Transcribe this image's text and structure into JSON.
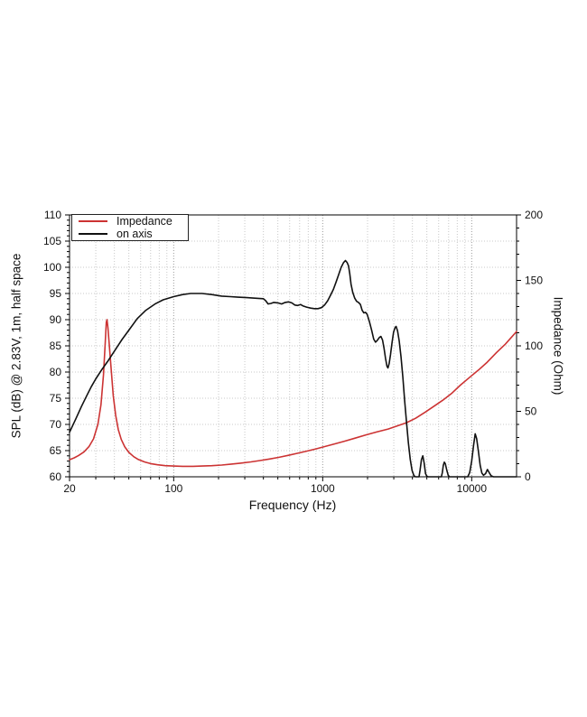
{
  "chart_data": {
    "type": "line",
    "xlabel": "Frequency (Hz)",
    "ylabel_left": "SPL (dB) @ 2.83V, 1m, half space",
    "ylabel_right": "Impedance (Ohm)",
    "x_scale": "log",
    "x_range": [
      20,
      20000
    ],
    "x_ticks_labeled": [
      20,
      100,
      1000,
      10000
    ],
    "x_ticks_minor": [
      30,
      40,
      50,
      60,
      70,
      80,
      90,
      200,
      300,
      400,
      500,
      600,
      700,
      800,
      900,
      2000,
      3000,
      4000,
      5000,
      6000,
      7000,
      8000,
      9000
    ],
    "y_left_range": [
      60,
      110
    ],
    "y_left_ticks": [
      60,
      65,
      70,
      75,
      80,
      85,
      90,
      95,
      100,
      105,
      110
    ],
    "y_left_minor_step": 1,
    "y_right_range": [
      0,
      200
    ],
    "y_right_ticks": [
      0,
      50,
      100,
      150,
      200
    ],
    "y_right_minor_step": 10,
    "grid": true,
    "legend_position": "top-left",
    "series": [
      {
        "name": "Impedance",
        "axis": "right",
        "color": "#cc3333",
        "points": [
          [
            20,
            13
          ],
          [
            21.5,
            14.5
          ],
          [
            23,
            16.3
          ],
          [
            25,
            19
          ],
          [
            27,
            23
          ],
          [
            29,
            29
          ],
          [
            31,
            40
          ],
          [
            32.5,
            55
          ],
          [
            33.8,
            78
          ],
          [
            34.7,
            102
          ],
          [
            35.3,
            118
          ],
          [
            35.7,
            120
          ],
          [
            36.2,
            114
          ],
          [
            37,
            100
          ],
          [
            38,
            83
          ],
          [
            39.3,
            62
          ],
          [
            40.8,
            47
          ],
          [
            42.5,
            36
          ],
          [
            44.5,
            28.5
          ],
          [
            47,
            22.8
          ],
          [
            50,
            18.6
          ],
          [
            54,
            15.3
          ],
          [
            58,
            13.2
          ],
          [
            64,
            11.3
          ],
          [
            70,
            10.1
          ],
          [
            78,
            9.2
          ],
          [
            88,
            8.5
          ],
          [
            100,
            8.2
          ],
          [
            115,
            8
          ],
          [
            135,
            8
          ],
          [
            155,
            8.2
          ],
          [
            180,
            8.5
          ],
          [
            210,
            9
          ],
          [
            240,
            9.6
          ],
          [
            280,
            10.4
          ],
          [
            330,
            11.4
          ],
          [
            380,
            12.4
          ],
          [
            440,
            13.6
          ],
          [
            510,
            14.9
          ],
          [
            590,
            16.4
          ],
          [
            680,
            18
          ],
          [
            780,
            19.6
          ],
          [
            900,
            21.3
          ],
          [
            1040,
            23.2
          ],
          [
            1200,
            25.1
          ],
          [
            1400,
            27.2
          ],
          [
            1650,
            29.5
          ],
          [
            1950,
            32
          ],
          [
            2300,
            34.2
          ],
          [
            2750,
            36.5
          ],
          [
            3200,
            39
          ],
          [
            3650,
            41.3
          ],
          [
            4200,
            44.7
          ],
          [
            4900,
            49.5
          ],
          [
            5600,
            54
          ],
          [
            6400,
            58.5
          ],
          [
            7300,
            63.5
          ],
          [
            8400,
            70
          ],
          [
            9700,
            76
          ],
          [
            11100,
            81.5
          ],
          [
            12700,
            87.5
          ],
          [
            14700,
            95
          ],
          [
            16700,
            101
          ],
          [
            18300,
            106
          ],
          [
            20000,
            111
          ]
        ]
      },
      {
        "name": "on axis",
        "axis": "left",
        "color": "#111111",
        "points": [
          [
            20,
            68.5
          ],
          [
            22,
            71
          ],
          [
            24,
            73.4
          ],
          [
            26,
            75.4
          ],
          [
            28,
            77.2
          ],
          [
            30,
            78.7
          ],
          [
            33,
            80.5
          ],
          [
            36,
            82
          ],
          [
            40,
            84
          ],
          [
            45,
            86.2
          ],
          [
            50,
            88
          ],
          [
            57,
            90.2
          ],
          [
            65,
            91.8
          ],
          [
            75,
            93
          ],
          [
            85,
            93.8
          ],
          [
            100,
            94.4
          ],
          [
            115,
            94.8
          ],
          [
            130,
            95
          ],
          [
            155,
            95
          ],
          [
            180,
            94.8
          ],
          [
            210,
            94.5
          ],
          [
            240,
            94.4
          ],
          [
            270,
            94.3
          ],
          [
            310,
            94.2
          ],
          [
            350,
            94.1
          ],
          [
            400,
            94
          ],
          [
            415,
            93.6
          ],
          [
            430,
            93
          ],
          [
            450,
            93.1
          ],
          [
            470,
            93.3
          ],
          [
            500,
            93.2
          ],
          [
            530,
            93
          ],
          [
            560,
            93.3
          ],
          [
            590,
            93.4
          ],
          [
            620,
            93.2
          ],
          [
            650,
            92.8
          ],
          [
            680,
            92.7
          ],
          [
            710,
            92.9
          ],
          [
            740,
            92.6
          ],
          [
            780,
            92.4
          ],
          [
            830,
            92.2
          ],
          [
            880,
            92.1
          ],
          [
            930,
            92.1
          ],
          [
            980,
            92.3
          ],
          [
            1030,
            92.8
          ],
          [
            1080,
            93.6
          ],
          [
            1130,
            94.7
          ],
          [
            1180,
            95.8
          ],
          [
            1230,
            97.2
          ],
          [
            1280,
            98.6
          ],
          [
            1330,
            100
          ],
          [
            1380,
            100.9
          ],
          [
            1420,
            101.3
          ],
          [
            1460,
            100.9
          ],
          [
            1490,
            100.3
          ],
          [
            1520,
            98.8
          ],
          [
            1550,
            96.8
          ],
          [
            1590,
            95.2
          ],
          [
            1640,
            94.1
          ],
          [
            1690,
            93.5
          ],
          [
            1740,
            93.3
          ],
          [
            1790,
            92.9
          ],
          [
            1840,
            91.8
          ],
          [
            1890,
            91.3
          ],
          [
            1940,
            91.4
          ],
          [
            1990,
            91
          ],
          [
            2060,
            89.6
          ],
          [
            2130,
            88
          ],
          [
            2200,
            86.3
          ],
          [
            2260,
            85.7
          ],
          [
            2320,
            86
          ],
          [
            2400,
            86.6
          ],
          [
            2460,
            86.8
          ],
          [
            2520,
            86.1
          ],
          [
            2580,
            84.6
          ],
          [
            2640,
            82.6
          ],
          [
            2700,
            81.1
          ],
          [
            2740,
            80.8
          ],
          [
            2790,
            81.6
          ],
          [
            2850,
            83.3
          ],
          [
            2920,
            85.6
          ],
          [
            2990,
            87.6
          ],
          [
            3060,
            88.5
          ],
          [
            3110,
            88.7
          ],
          [
            3180,
            87.9
          ],
          [
            3260,
            86
          ],
          [
            3350,
            83
          ],
          [
            3450,
            79
          ],
          [
            3550,
            74.5
          ],
          [
            3650,
            70.5
          ],
          [
            3760,
            66.5
          ],
          [
            3870,
            63.3
          ],
          [
            3980,
            61.2
          ],
          [
            4100,
            60.2
          ],
          [
            4200,
            60
          ],
          [
            4430,
            60
          ],
          [
            4500,
            61.2
          ],
          [
            4600,
            63.3
          ],
          [
            4700,
            64
          ],
          [
            4800,
            62.6
          ],
          [
            4900,
            60.6
          ],
          [
            5000,
            60.1
          ],
          [
            5100,
            60
          ],
          [
            6250,
            60
          ],
          [
            6350,
            60.8
          ],
          [
            6450,
            62.2
          ],
          [
            6550,
            62.8
          ],
          [
            6650,
            62.5
          ],
          [
            6800,
            61.3
          ],
          [
            6950,
            60.3
          ],
          [
            7100,
            60
          ],
          [
            9400,
            60
          ],
          [
            9700,
            60.8
          ],
          [
            10000,
            63
          ],
          [
            10300,
            66
          ],
          [
            10560,
            68.2
          ],
          [
            10800,
            67.3
          ],
          [
            11100,
            64.8
          ],
          [
            11400,
            62.2
          ],
          [
            11700,
            60.7
          ],
          [
            12000,
            60.3
          ],
          [
            12400,
            60.6
          ],
          [
            12750,
            61.4
          ],
          [
            13100,
            60.8
          ],
          [
            13500,
            60.2
          ],
          [
            14000,
            60
          ],
          [
            20000,
            60
          ]
        ]
      }
    ]
  },
  "legend": {
    "items": [
      {
        "label": "Impedance"
      },
      {
        "label": "on axis"
      }
    ]
  },
  "colors": {
    "frame": "#000000",
    "grid_minor": "#c8c8c8",
    "grid_decade": "#9a9a9a",
    "background": "#ffffff",
    "impedance_line": "#cc3333",
    "on_axis_line": "#111111"
  }
}
